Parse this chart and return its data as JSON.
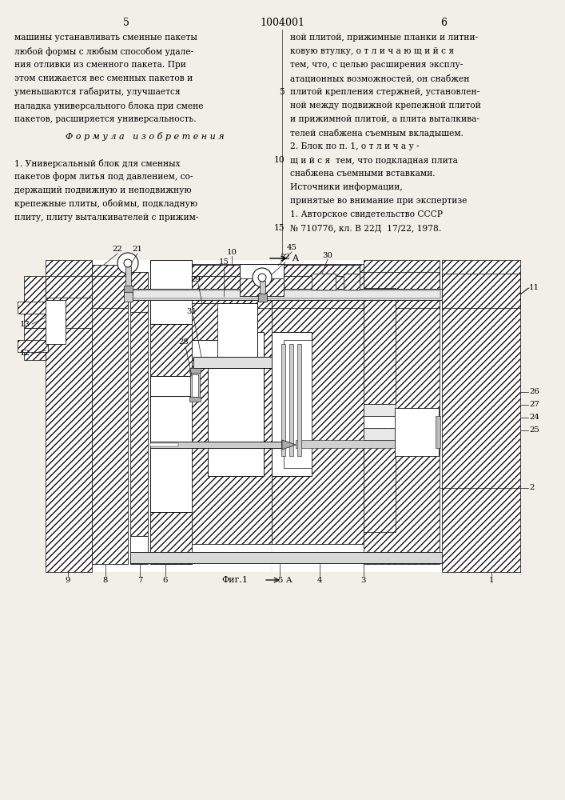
{
  "bg_color": "#f2efe8",
  "page_num_left": "5",
  "patent_num": "1004001",
  "page_num_right": "6",
  "left_col": [
    "машины устанавливать сменные пакеты",
    "любой формы с любым способом удале-",
    "ния отливки из сменного пакета. При",
    "этом снижается вес сменных пакетов и",
    "уменьшаются габариты, улучшается",
    "наладка универсального блока при смене",
    "пакетов, расширяется универсальность."
  ],
  "formula_hdr": "Ф о р м у л а   и з о б р е т е н и я",
  "left_col2": [
    "1. Универсальный блок для сменных",
    "пакетов форм литья под давлением, со-",
    "держащий подвижную и неподвижную",
    "крепежные плиты, обоймы, подкладную",
    "плиту, плиту выталкивателей с прижим-"
  ],
  "right_col": [
    [
      "ной плитой, прижимные планки и литни-",
      null
    ],
    [
      "ковую втулку, о т л и ч а ю щ и й с я",
      null
    ],
    [
      "тем, что, с целью расширения эксплу-",
      null
    ],
    [
      "атационных возможностей, он снабжен",
      null
    ],
    [
      "плитой крепления стержней, установлен-",
      "5"
    ],
    [
      "ной между подвижной крепежной плитой",
      null
    ],
    [
      "и прижимной плитой, а плита выталкива-",
      null
    ],
    [
      "телей снабжена съемным вкладышем.",
      null
    ],
    [
      "2. Блок по п. 1, о т л и ч а у -",
      null
    ],
    [
      "щ и й с я  тем, что подкладная плита",
      "10"
    ],
    [
      "снабжена съемными вставками.",
      null
    ],
    [
      "Источники информации,",
      null
    ],
    [
      "принятые во внимание при экспертизе",
      null
    ],
    [
      "1. Авторское свидетельство СССР",
      null
    ],
    [
      "№ 710776, кл. В 22Д  17/22, 1978.",
      "15"
    ]
  ],
  "fig_label": "Фиг.1",
  "section_letter": "A",
  "hatch_color": "#ffffff",
  "line_color": "#111111"
}
